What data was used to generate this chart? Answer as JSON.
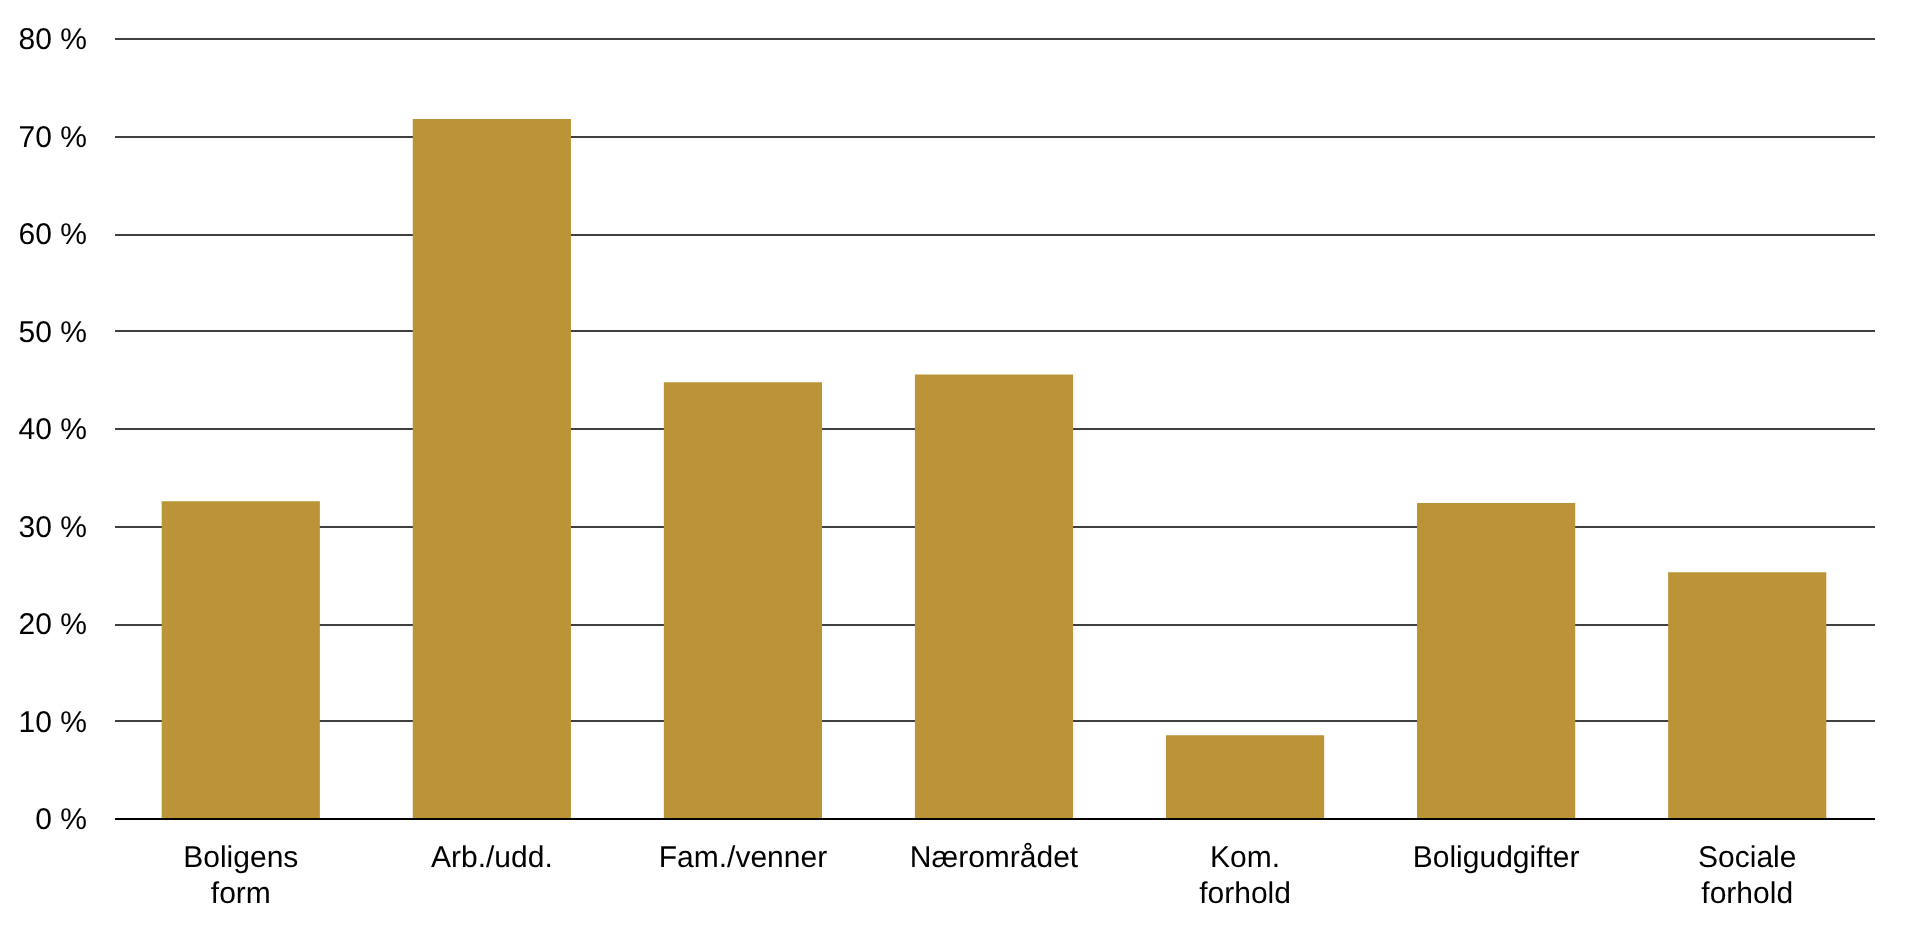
{
  "chart_data": {
    "type": "bar",
    "categories": [
      "Boligens form",
      "Arb./udd.",
      "Fam./venner",
      "Nærområdet",
      "Kom. forhold",
      "Boligudgifter",
      "Sociale forhold"
    ],
    "values": [
      32.5,
      71.7,
      44.7,
      45.5,
      8.5,
      32.3,
      25.2
    ],
    "color": "#bb9438",
    "ylim": [
      0,
      80
    ],
    "yticks": [
      {
        "value": 0,
        "label": "0 %"
      },
      {
        "value": 10,
        "label": "10 %"
      },
      {
        "value": 20,
        "label": "20 %"
      },
      {
        "value": 30,
        "label": "30 %"
      },
      {
        "value": 40,
        "label": "40 %"
      },
      {
        "value": 50,
        "label": "50 %"
      },
      {
        "value": 60,
        "label": "60 %"
      },
      {
        "value": 70,
        "label": "70 %"
      },
      {
        "value": 80,
        "label": "80 %"
      }
    ],
    "grid": "y"
  }
}
